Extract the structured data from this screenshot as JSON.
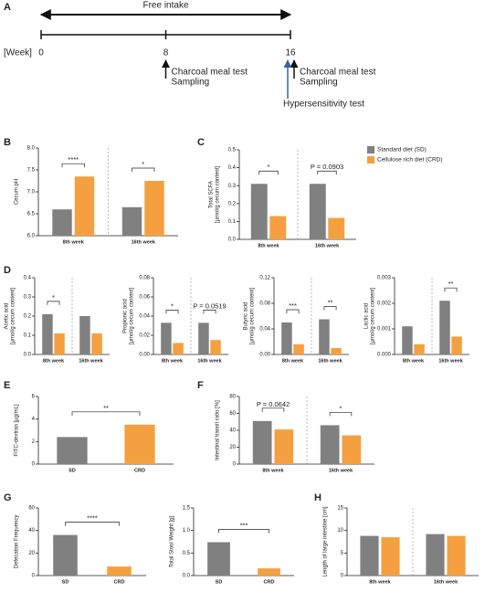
{
  "timeline": {
    "panel": "A",
    "header": "Free intake",
    "unit_label": "[Week]",
    "ticks": [
      0,
      8,
      16
    ],
    "events": [
      {
        "week": 8,
        "lines": [
          "Charcoal meal test",
          "Sampling"
        ]
      },
      {
        "week": 16,
        "lines": [
          "Charcoal meal test",
          "Sampling"
        ]
      },
      {
        "week": 16,
        "lines": [
          "Hypersensitivity test"
        ],
        "color": "#3a5fb0"
      }
    ]
  },
  "chart_data": [
    {
      "type": "bar",
      "panel": "B",
      "ylabel": "Cecum pH",
      "categories": [
        "8th week",
        "16th week"
      ],
      "series": [
        {
          "color": "#808080",
          "values": [
            6.6,
            6.65
          ]
        },
        {
          "color": "#f5a040",
          "values": [
            7.35,
            7.25
          ]
        }
      ],
      "ylim": [
        6,
        8
      ],
      "yticks": [
        {
          "value": 6,
          "label": "6.0"
        },
        6.5,
        {
          "value": 7,
          "label": "7.0"
        },
        7.5,
        {
          "value": 8,
          "label": "8.0"
        }
      ],
      "significance": [
        "****",
        "*"
      ]
    },
    {
      "type": "bar",
      "panel": "C",
      "ylabel": [
        "Total SCFA",
        "[µmol/g cecum content]"
      ],
      "categories": [
        "8th week",
        "16th week"
      ],
      "series": [
        {
          "name": "Standard diet (SD)",
          "color": "#808080",
          "values": [
            0.31,
            0.31
          ]
        },
        {
          "name": "Cellulose rich diet (CRD)",
          "color": "#f5a040",
          "values": [
            0.13,
            0.12
          ]
        }
      ],
      "ylim": [
        0,
        0.5
      ],
      "yticks": [
        {
          "value": 0,
          "label": "0.0"
        },
        0.1,
        0.2,
        0.3,
        0.4,
        0.5
      ],
      "significance": [
        "*",
        "P = 0.0903"
      ],
      "legend": "right"
    },
    {
      "type": "bar",
      "panel": "D",
      "ylabel": [
        "Acetic acid",
        "[µmol/g cecum content]"
      ],
      "categories": [
        "8th week",
        "16th week"
      ],
      "series": [
        {
          "color": "#808080",
          "values": [
            0.21,
            0.2
          ]
        },
        {
          "color": "#f5a040",
          "values": [
            0.11,
            0.11
          ]
        }
      ],
      "ylim": [
        0,
        0.4
      ],
      "yticks": [
        {
          "value": 0,
          "label": "0.0"
        },
        0.1,
        0.2,
        0.3,
        0.4
      ],
      "significance": [
        "*",
        null
      ]
    },
    {
      "type": "bar",
      "ylabel": [
        "Propionic acid",
        "[µmol/g cecum content]"
      ],
      "categories": [
        "8th week",
        "16th week"
      ],
      "series": [
        {
          "color": "#808080",
          "values": [
            0.033,
            0.033
          ]
        },
        {
          "color": "#f5a040",
          "values": [
            0.012,
            0.015
          ]
        }
      ],
      "ylim": [
        0,
        0.08
      ],
      "yticks": [
        {
          "value": 0,
          "label": "0.00"
        },
        0.02,
        0.04,
        0.06,
        0.08
      ],
      "significance": [
        "*",
        "P = 0.0519"
      ]
    },
    {
      "type": "bar",
      "ylabel": [
        "Butyric acid",
        "[µmol/g cecum content]"
      ],
      "categories": [
        "8th week",
        "16th week"
      ],
      "series": [
        {
          "color": "#808080",
          "values": [
            0.05,
            0.055
          ]
        },
        {
          "color": "#f5a040",
          "values": [
            0.016,
            0.01
          ]
        }
      ],
      "ylim": [
        0,
        0.12
      ],
      "yticks": [
        {
          "value": 0,
          "label": "0.00"
        },
        0.04,
        0.08,
        0.12
      ],
      "significance": [
        "***",
        "**"
      ]
    },
    {
      "type": "bar",
      "ylabel": [
        "Lactic acid",
        "[µmol/g cecum content]"
      ],
      "categories": [
        "8th week",
        "16th week"
      ],
      "series": [
        {
          "color": "#808080",
          "values": [
            0.0011,
            0.0021
          ]
        },
        {
          "color": "#f5a040",
          "values": [
            0.0004,
            0.0007
          ]
        }
      ],
      "ylim": [
        0,
        0.003
      ],
      "yticks": [
        {
          "value": 0,
          "label": "0.000"
        },
        0.001,
        0.002,
        0.003
      ],
      "significance": [
        null,
        "**"
      ]
    },
    {
      "type": "bar",
      "panel": "E",
      "ylabel": "FITC-dextran [µg/mL]",
      "categories": [
        "SD",
        "CRD"
      ],
      "values": [
        2.4,
        3.5
      ],
      "colors": [
        "#808080",
        "#f5a040"
      ],
      "ylim": [
        0,
        6
      ],
      "yticks": [
        0,
        2,
        4,
        6
      ],
      "significance": "**"
    },
    {
      "type": "bar",
      "panel": "F",
      "ylabel": "Intestinal transit ratio [%]",
      "categories": [
        "8th week",
        "16th week"
      ],
      "series": [
        {
          "color": "#808080",
          "values": [
            51,
            46
          ]
        },
        {
          "color": "#f5a040",
          "values": [
            41,
            34
          ]
        }
      ],
      "ylim": [
        0,
        80
      ],
      "yticks": [
        0,
        20,
        40,
        60,
        80
      ],
      "significance": [
        "P = 0.0642",
        "*"
      ]
    },
    {
      "type": "bar",
      "panel": "G",
      "ylabel": "Defecation Frequency",
      "categories": [
        "SD",
        "CRD"
      ],
      "values": [
        36,
        8
      ],
      "colors": [
        "#808080",
        "#f5a040"
      ],
      "ylim": [
        0,
        60
      ],
      "yticks": [
        0,
        20,
        40,
        60
      ],
      "significance": "****"
    },
    {
      "type": "bar",
      "ylabel": "Total Stool Weight [g]",
      "categories": [
        "SD",
        "CRD"
      ],
      "values": [
        0.74,
        0.16
      ],
      "colors": [
        "#808080",
        "#f5a040"
      ],
      "ylim": [
        0,
        1.5
      ],
      "yticks": [
        {
          "value": 0,
          "label": "0.0"
        },
        0.5,
        {
          "value": 1,
          "label": "1.0"
        },
        1.5
      ],
      "significance": "***"
    },
    {
      "type": "bar",
      "panel": "H",
      "ylabel": "Length of large intestine [cm]",
      "categories": [
        "8th week",
        "16th week"
      ],
      "series": [
        {
          "color": "#808080",
          "values": [
            8.8,
            9.2
          ]
        },
        {
          "color": "#f5a040",
          "values": [
            8.5,
            8.8
          ]
        }
      ],
      "ylim": [
        0,
        15
      ],
      "yticks": [
        0,
        5,
        10,
        15
      ]
    }
  ]
}
